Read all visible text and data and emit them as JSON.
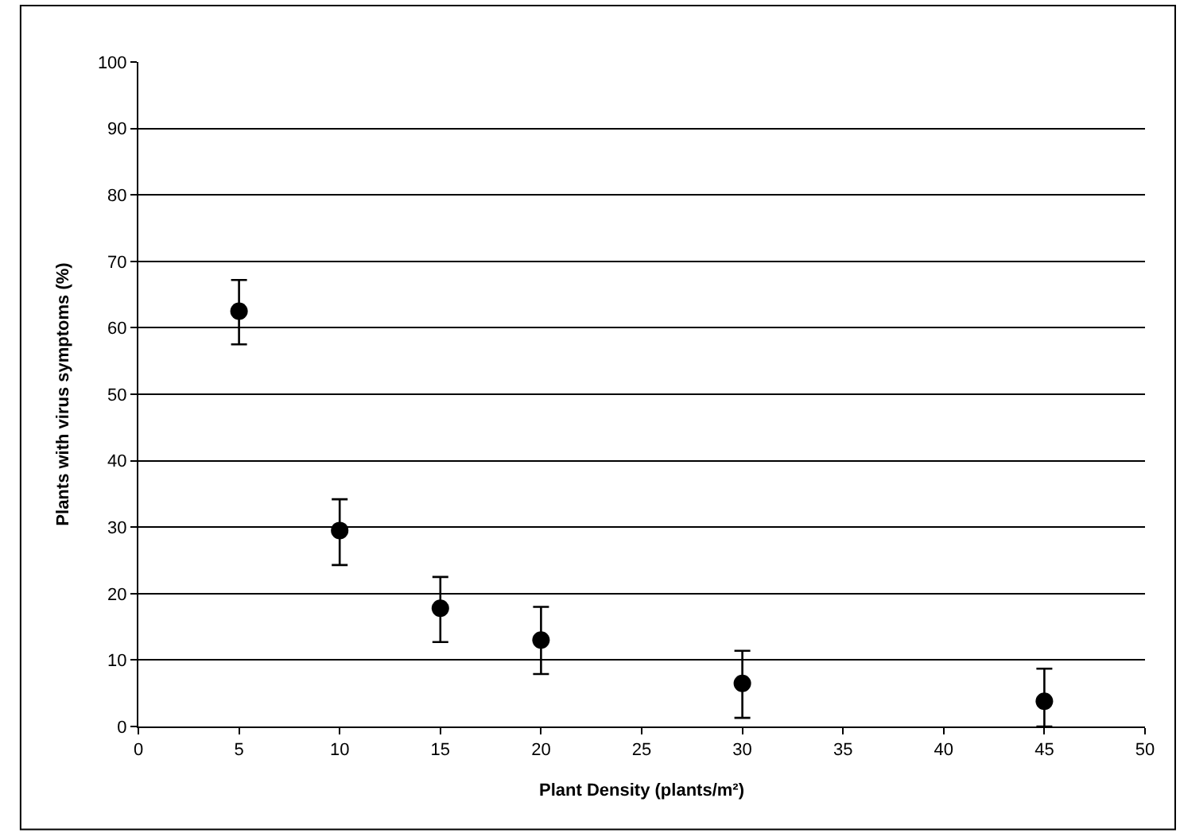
{
  "chart_data": {
    "type": "scatter",
    "xlabel": "Plant Density (plants/m²)",
    "ylabel": "Plants with virus symptoms (%)",
    "x": [
      5,
      10,
      15,
      20,
      30,
      45
    ],
    "values": [
      62.5,
      29.5,
      17.8,
      13,
      6.5,
      3.8
    ],
    "errors": [
      [
        57.5,
        67.2
      ],
      [
        24.3,
        34.2
      ],
      [
        12.7,
        22.5
      ],
      [
        7.9,
        18
      ],
      [
        1.3,
        11.4
      ],
      [
        0,
        8.7
      ]
    ],
    "color": "#000000",
    "marker": "circle",
    "xlim": [
      0,
      50
    ],
    "xticks": [
      0,
      5,
      10,
      15,
      20,
      25,
      30,
      35,
      40,
      45,
      50
    ],
    "ylim": [
      0,
      100
    ],
    "yticks": [
      0,
      10,
      20,
      30,
      40,
      50,
      60,
      70,
      80,
      90,
      100
    ],
    "grid": "y",
    "legend": false
  }
}
